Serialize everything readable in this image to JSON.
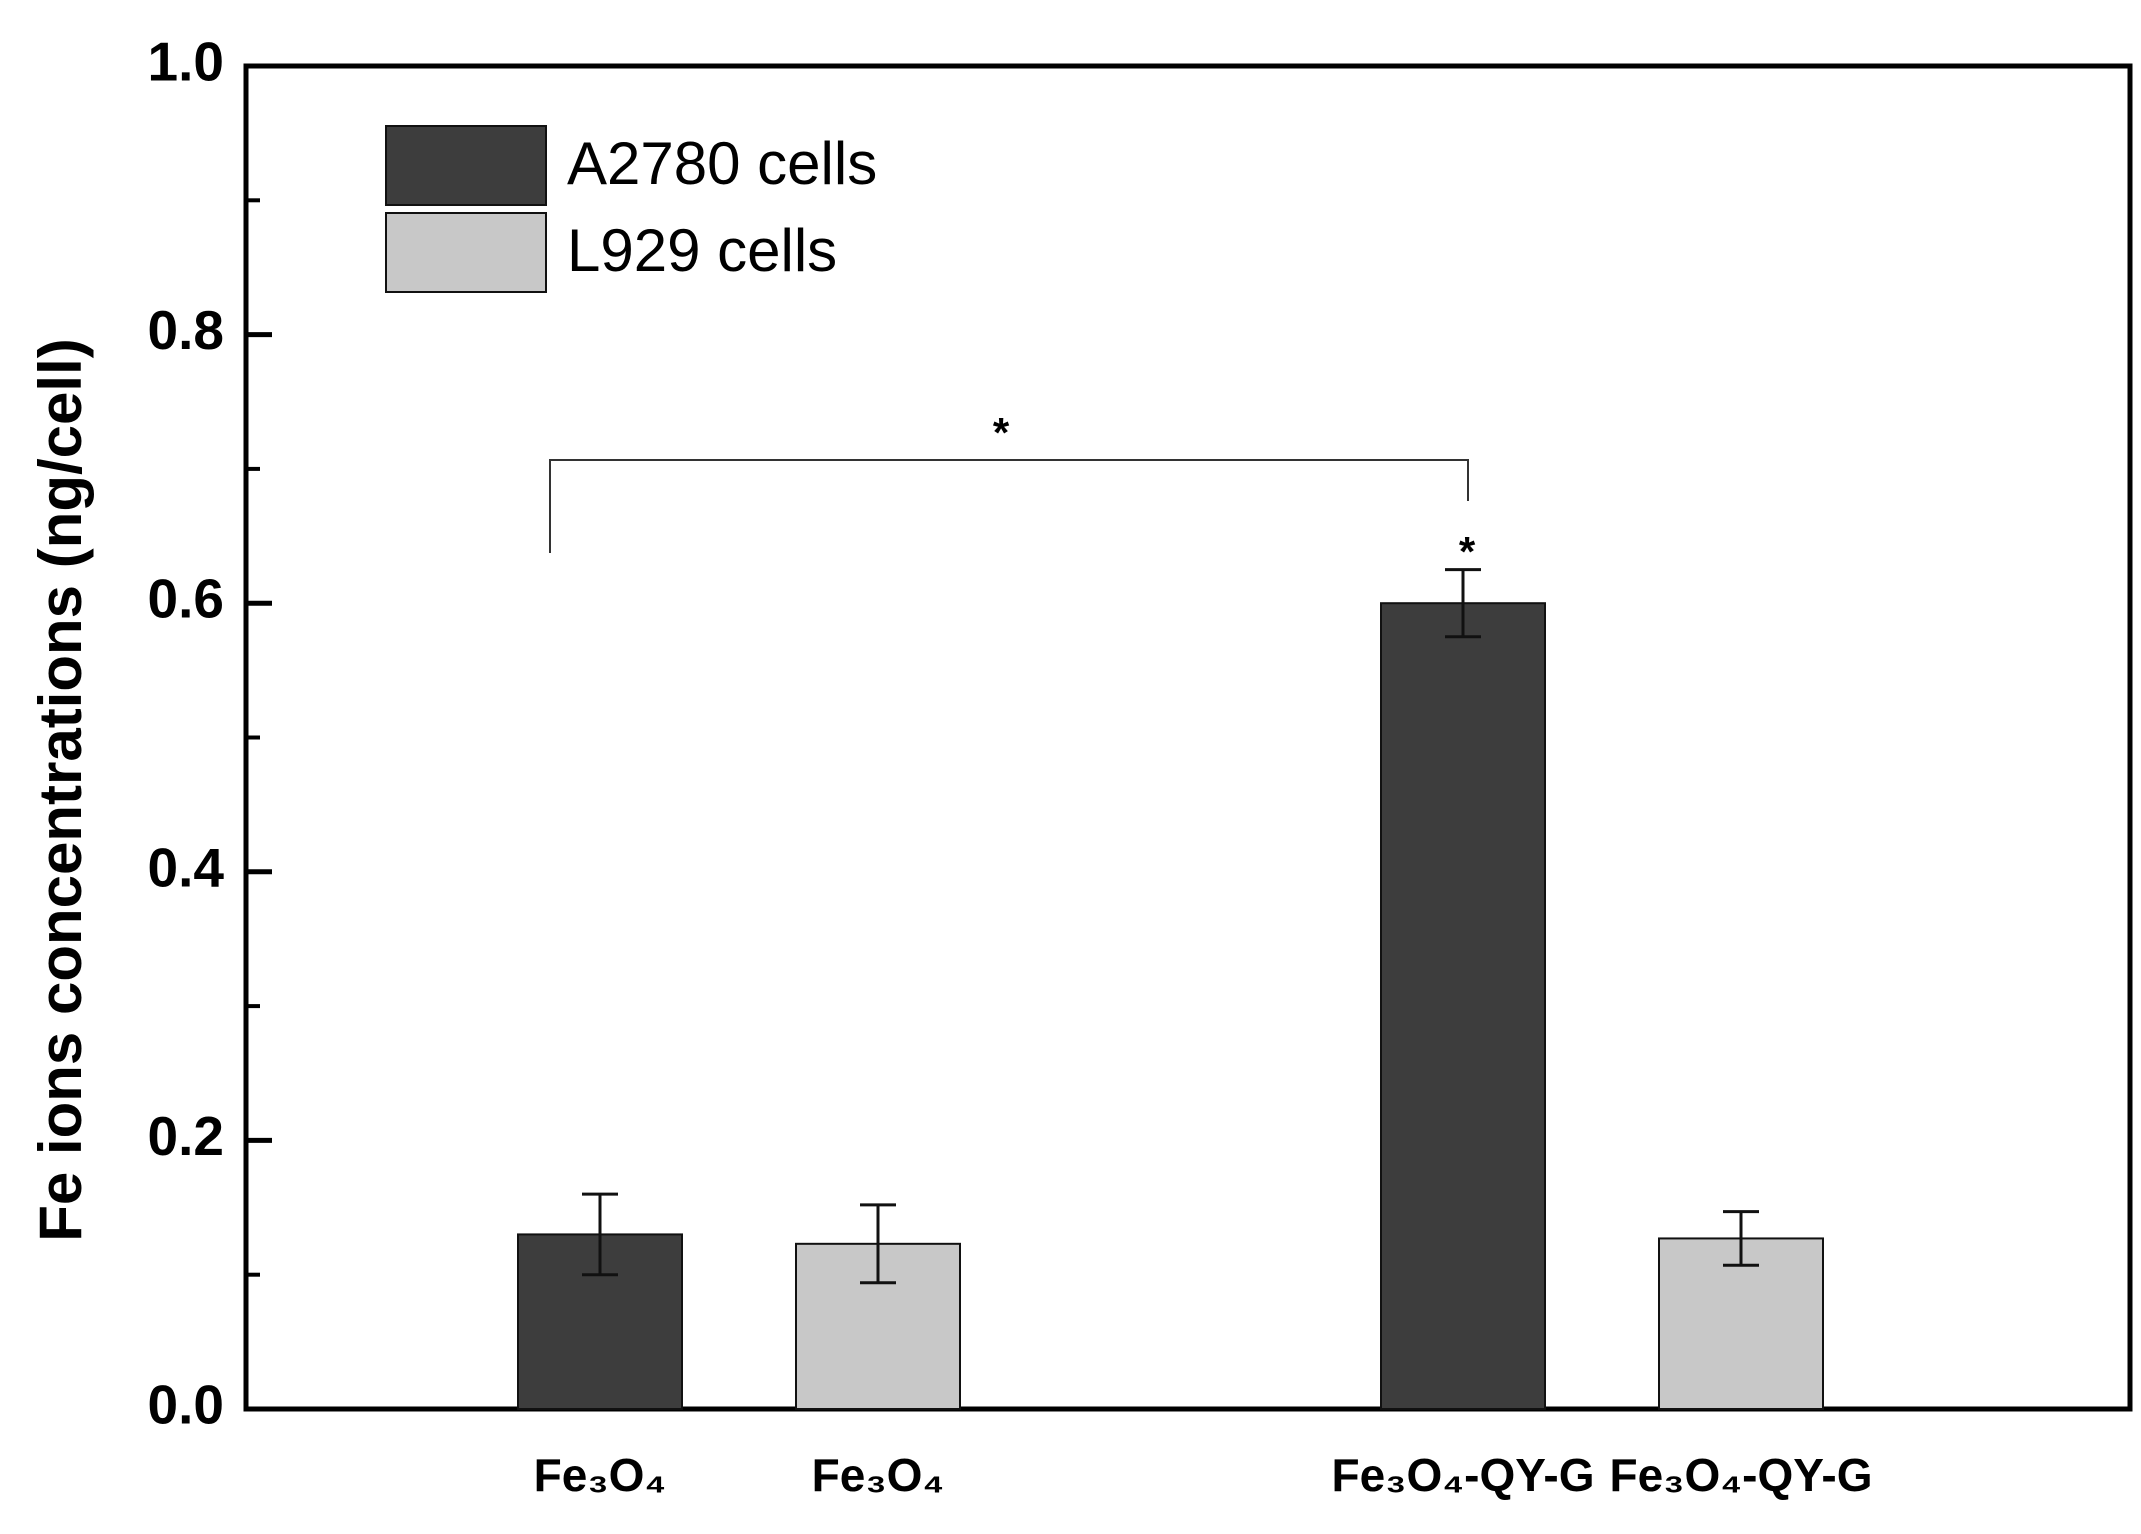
{
  "chart_data": {
    "type": "bar",
    "y_label": "Fe ions concentrations (ng/cell)",
    "categories": [
      "Fe₃O₄",
      "Fe₃O₄",
      "Fe₃O₄-QY-G",
      "Fe₃O₄-QY-G"
    ],
    "series": [
      {
        "name": "A2780 cells",
        "color": "#3d3d3d",
        "values": [
          0.13,
          null,
          0.6,
          null
        ],
        "errors": [
          0.03,
          null,
          0.025,
          null
        ]
      },
      {
        "name": "L929 cells",
        "color": "#c8c8c8",
        "values": [
          null,
          0.123,
          null,
          0.127
        ],
        "errors": [
          null,
          0.029,
          null,
          0.02
        ]
      }
    ],
    "ylim": [
      0,
      1.0
    ],
    "yticks": [
      {
        "value": 0,
        "label": "0.0"
      },
      0.2,
      0.4,
      0.6,
      0.8,
      {
        "value": 1.0,
        "label": "1.0"
      }
    ],
    "yminorticks": [
      0.1,
      0.3,
      0.5,
      0.7,
      0.9
    ],
    "legend": "upper left",
    "annotations": [
      {
        "text": "*"
      },
      {
        "text": "*"
      }
    ]
  }
}
